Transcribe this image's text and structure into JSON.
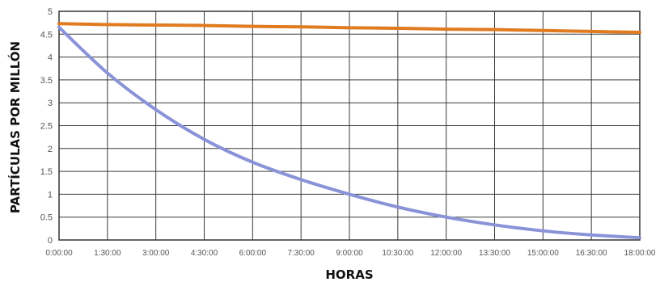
{
  "chart_data": {
    "type": "line",
    "title": "",
    "xlabel": "HORAS",
    "ylabel": "PARTÍCULAS POR MILLÓN",
    "x": [
      "0:00:00",
      "1:30:00",
      "3:00:00",
      "4:30:00",
      "6:00:00",
      "7:30:00",
      "9:00:00",
      "10:30:00",
      "12:00:00",
      "13:30:00",
      "15:00:00",
      "16:30:00",
      "18:00:00"
    ],
    "x_hours": [
      0,
      1.5,
      3,
      4.5,
      6,
      7.5,
      9,
      10.5,
      12,
      13.5,
      15,
      16.5,
      18
    ],
    "ylim": [
      0,
      5
    ],
    "yticks": [
      "0",
      "0.5",
      "1",
      "1.5",
      "2",
      "2.5",
      "3",
      "3.5",
      "4",
      "4.5",
      "5"
    ],
    "grid": true,
    "series": [
      {
        "color": "#e07b1f",
        "values": [
          4.73,
          4.71,
          4.7,
          4.69,
          4.67,
          4.66,
          4.64,
          4.63,
          4.61,
          4.6,
          4.58,
          4.56,
          4.54
        ]
      },
      {
        "color": "#8a93d8",
        "values": [
          4.65,
          3.65,
          2.85,
          2.2,
          1.7,
          1.32,
          1.0,
          0.72,
          0.5,
          0.33,
          0.2,
          0.11,
          0.05
        ]
      }
    ]
  }
}
